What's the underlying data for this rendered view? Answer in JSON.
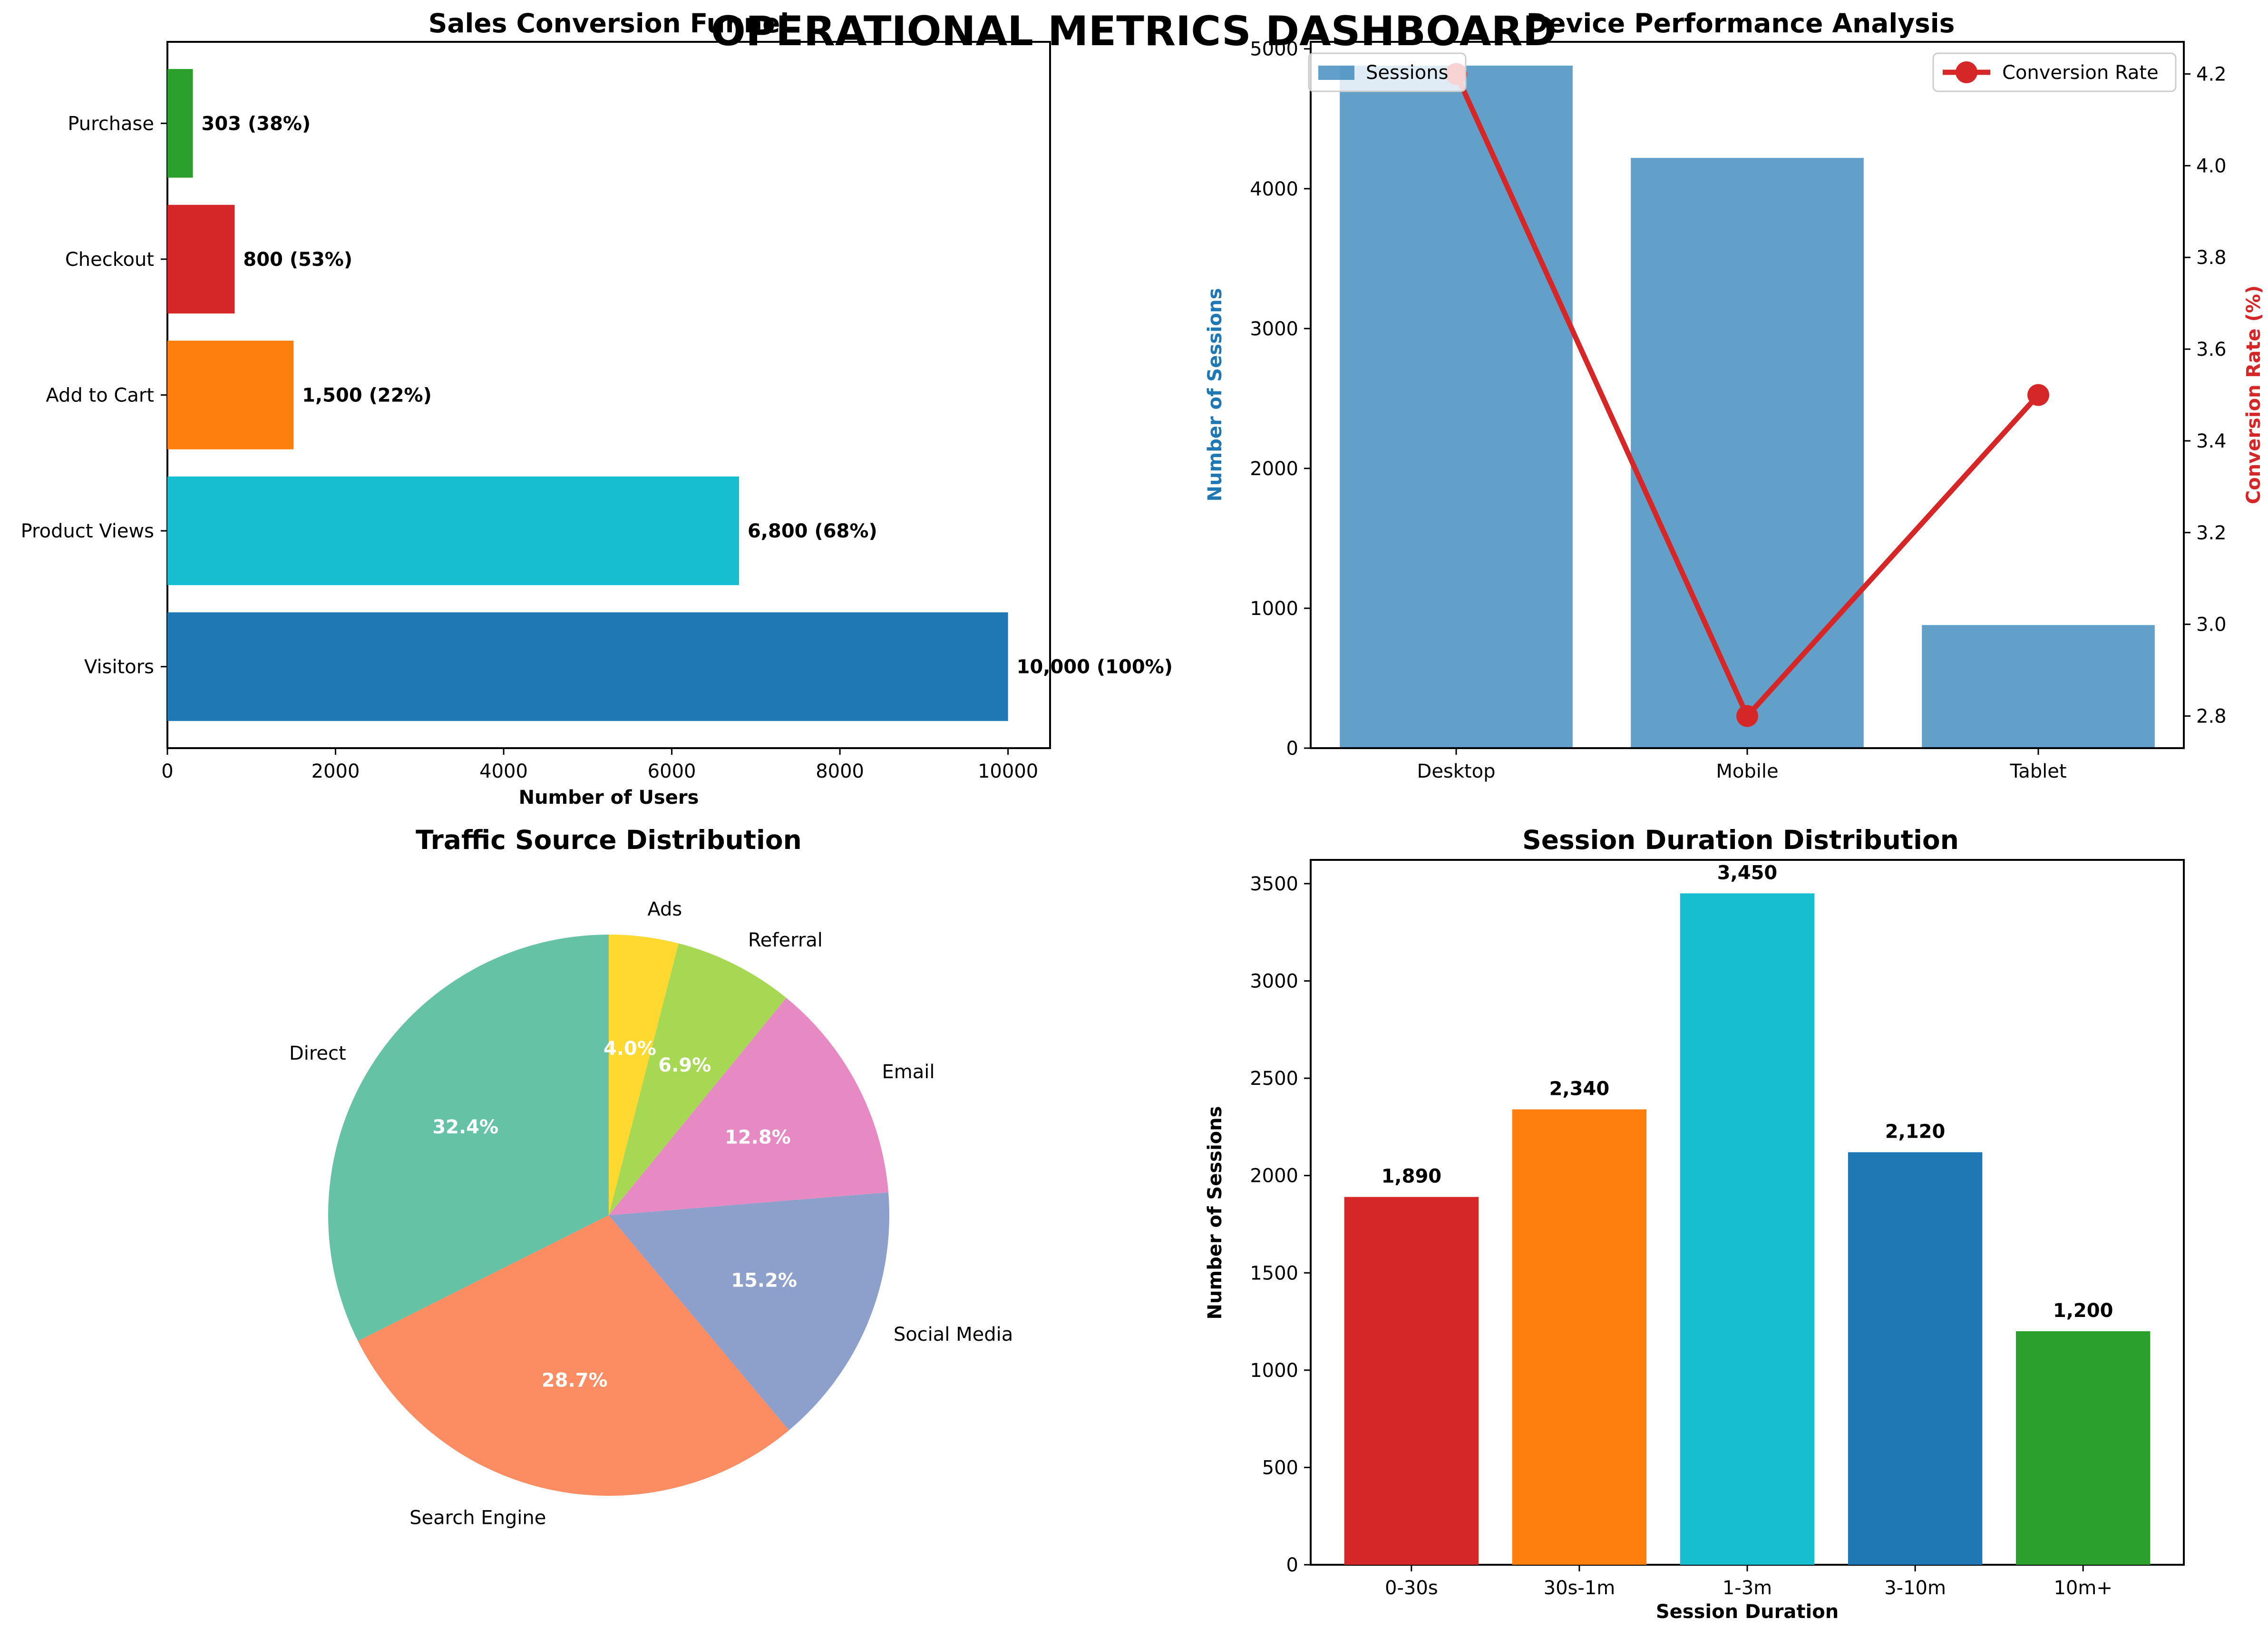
{
  "page_title": "OPERATIONAL METRICS DASHBOARD",
  "chart_data": [
    {
      "id": "funnel",
      "type": "bar",
      "orientation": "horizontal",
      "title": "Sales Conversion Funnel",
      "xlabel": "Number of Users",
      "ylabel": "",
      "xlim": [
        0,
        10500
      ],
      "xticks": [
        0,
        2000,
        4000,
        6000,
        8000,
        10000
      ],
      "grid": false,
      "categories": [
        "Visitors",
        "Product Views",
        "Add to Cart",
        "Checkout",
        "Purchase"
      ],
      "values": [
        10000,
        6800,
        1500,
        800,
        303
      ],
      "data_labels": [
        "10,000 (100%)",
        "6,800 (68%)",
        "1,500 (22%)",
        "800 (53%)",
        "303 (38%)"
      ],
      "colors": [
        "#1f77b4",
        "#17becf",
        "#ff7f0e",
        "#d62728",
        "#2ca02c"
      ]
    },
    {
      "id": "device",
      "type": "bar",
      "title": "Device Performance Analysis",
      "categories": [
        "Desktop",
        "Mobile",
        "Tablet"
      ],
      "series": [
        {
          "name": "Sessions",
          "type": "bar",
          "axis": "left",
          "values": [
            4880,
            4220,
            880
          ],
          "color": "#1f77b4"
        },
        {
          "name": "Conversion Rate",
          "type": "line",
          "axis": "right",
          "values": [
            4.2,
            2.8,
            3.5
          ],
          "color": "#d62728"
        }
      ],
      "ylabel_left": "Number of Sessions",
      "ylabel_right": "Conversion Rate (%)",
      "ylim_left": [
        0,
        5050
      ],
      "yticks_left": [
        0,
        1000,
        2000,
        3000,
        4000,
        5000
      ],
      "ylim_right": [
        2.73,
        4.27
      ],
      "yticks_right": [
        2.8,
        3.0,
        3.2,
        3.4,
        3.6,
        3.8,
        4.0,
        4.2
      ],
      "legend_left_position": "upper-left",
      "legend_right_position": "upper-right",
      "grid": false
    },
    {
      "id": "traffic",
      "type": "pie",
      "title": "Traffic Source Distribution",
      "categories": [
        "Direct",
        "Search Engine",
        "Social Media",
        "Email",
        "Referral",
        "Ads"
      ],
      "values": [
        32.4,
        28.7,
        15.2,
        12.8,
        6.9,
        4.0
      ],
      "pct_labels": [
        "32.4%",
        "28.7%",
        "15.2%",
        "12.8%",
        "6.9%",
        "4.0%"
      ],
      "colors": [
        "#66c2a5",
        "#fc8d62",
        "#8da0cb",
        "#e78ac3",
        "#a6d854",
        "#ffd92f"
      ],
      "start_angle_deg": 90,
      "direction": "counterclockwise"
    },
    {
      "id": "duration",
      "type": "bar",
      "title": "Session Duration Distribution",
      "xlabel": "Session Duration",
      "ylabel": "Number of Sessions",
      "ylim": [
        0,
        3622
      ],
      "yticks": [
        0,
        500,
        1000,
        1500,
        2000,
        2500,
        3000,
        3500
      ],
      "grid": false,
      "categories": [
        "0-30s",
        "30s-1m",
        "1-3m",
        "3-10m",
        "10m+"
      ],
      "values": [
        1890,
        2340,
        3450,
        2120,
        1200
      ],
      "data_labels": [
        "1,890",
        "2,340",
        "3,450",
        "2,120",
        "1,200"
      ],
      "colors": [
        "#d62728",
        "#ff7f0e",
        "#17becf",
        "#1f77b4",
        "#2ca02c"
      ]
    }
  ]
}
